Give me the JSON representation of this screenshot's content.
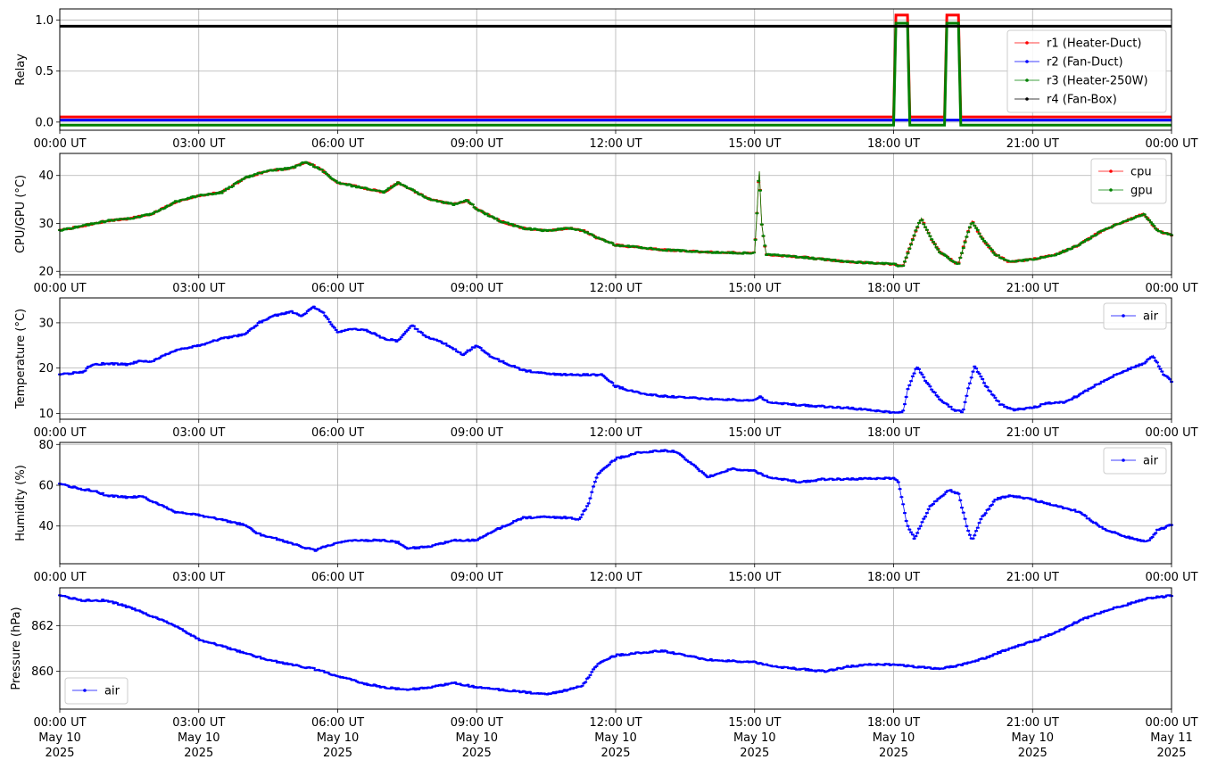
{
  "chart_data": [
    {
      "type": "line",
      "ylabel": "Relay",
      "xlim": [
        "00:00 UT",
        "00:00 UT"
      ],
      "ylim": [
        -0.08,
        1.11
      ],
      "yticks": [
        "0.0",
        "0.5",
        "1.0"
      ],
      "xticks": [
        "00:00 UT",
        "03:00 UT",
        "06:00 UT",
        "09:00 UT",
        "12:00 UT",
        "15:00 UT",
        "18:00 UT",
        "21:00 UT",
        "00:00 UT"
      ],
      "grid": true,
      "legend": "top-right",
      "series": [
        {
          "name": "r1 (Heater-Duct)",
          "color": "#ff0000",
          "offset": 0.05,
          "points": [
            [
              0,
              0
            ],
            [
              18.0,
              0
            ],
            [
              18.05,
              1
            ],
            [
              18.3,
              1
            ],
            [
              18.35,
              0
            ],
            [
              19.1,
              0
            ],
            [
              19.15,
              1
            ],
            [
              19.4,
              1
            ],
            [
              19.45,
              0
            ],
            [
              24,
              0
            ]
          ]
        },
        {
          "name": "r2 (Fan-Duct)",
          "color": "#0000ff",
          "offset": 0.02,
          "points": [
            [
              0,
              0
            ],
            [
              24,
              0
            ]
          ]
        },
        {
          "name": "r3 (Heater-250W)",
          "color": "#008000",
          "offset": -0.03,
          "points": [
            [
              0,
              0
            ],
            [
              18.0,
              0
            ],
            [
              18.05,
              1
            ],
            [
              18.3,
              1
            ],
            [
              18.35,
              0
            ],
            [
              19.1,
              0
            ],
            [
              19.15,
              1
            ],
            [
              19.4,
              1
            ],
            [
              19.45,
              0
            ],
            [
              24,
              0
            ]
          ]
        },
        {
          "name": "r4 (Fan-Box)",
          "color": "#000000",
          "offset": -0.06,
          "points": [
            [
              0,
              1
            ],
            [
              24,
              1
            ]
          ]
        }
      ]
    },
    {
      "type": "line",
      "ylabel": "CPU/GPU (°C)",
      "ylim": [
        19.3,
        44.6
      ],
      "yticks": [
        "20",
        "30",
        "40"
      ],
      "xticks": [
        "00:00 UT",
        "03:00 UT",
        "06:00 UT",
        "09:00 UT",
        "12:00 UT",
        "15:00 UT",
        "18:00 UT",
        "21:00 UT",
        "00:00 UT"
      ],
      "grid": true,
      "legend": "top-right",
      "series": [
        {
          "name": "cpu",
          "color": "#ff0000"
        },
        {
          "name": "gpu",
          "color": "#008000"
        }
      ],
      "points": [
        [
          0,
          28.5
        ],
        [
          0.5,
          29.5
        ],
        [
          1,
          30.5
        ],
        [
          1.5,
          31
        ],
        [
          2,
          32
        ],
        [
          2.5,
          34.5
        ],
        [
          3,
          35.8
        ],
        [
          3.5,
          36.5
        ],
        [
          4,
          39.5
        ],
        [
          4.5,
          41
        ],
        [
          5,
          41.5
        ],
        [
          5.3,
          42.8
        ],
        [
          5.6,
          41.5
        ],
        [
          6,
          38.5
        ],
        [
          6.5,
          37.5
        ],
        [
          7,
          36.5
        ],
        [
          7.3,
          38.5
        ],
        [
          7.6,
          37
        ],
        [
          8,
          35
        ],
        [
          8.5,
          34
        ],
        [
          8.8,
          34.8
        ],
        [
          9,
          33
        ],
        [
          9.5,
          30.5
        ],
        [
          10,
          29
        ],
        [
          10.5,
          28.5
        ],
        [
          11,
          29
        ],
        [
          11.3,
          28.5
        ],
        [
          11.6,
          27
        ],
        [
          12,
          25.5
        ],
        [
          12.5,
          25
        ],
        [
          13,
          24.5
        ],
        [
          14,
          24
        ],
        [
          15,
          23.8
        ],
        [
          15.05,
          32
        ],
        [
          15.1,
          41.5
        ],
        [
          15.15,
          30
        ],
        [
          15.25,
          23.5
        ],
        [
          16,
          23
        ],
        [
          16.5,
          22.5
        ],
        [
          17,
          22
        ],
        [
          18,
          21.5
        ],
        [
          18.2,
          21
        ],
        [
          18.5,
          29
        ],
        [
          18.6,
          31
        ],
        [
          18.8,
          27
        ],
        [
          19,
          24
        ],
        [
          19.3,
          22
        ],
        [
          19.4,
          21.5
        ],
        [
          19.6,
          28
        ],
        [
          19.7,
          30.5
        ],
        [
          19.9,
          27
        ],
        [
          20.2,
          23.5
        ],
        [
          20.5,
          22
        ],
        [
          21,
          22.5
        ],
        [
          21.5,
          23.5
        ],
        [
          22,
          25.5
        ],
        [
          22.5,
          28.5
        ],
        [
          23,
          30.5
        ],
        [
          23.4,
          32
        ],
        [
          23.7,
          28.5
        ],
        [
          24,
          27.5
        ]
      ]
    },
    {
      "type": "line",
      "ylabel": "Temperature (°C)",
      "ylim": [
        8.7,
        35.5
      ],
      "yticks": [
        "10",
        "20",
        "30"
      ],
      "xticks": [
        "00:00 UT",
        "03:00 UT",
        "06:00 UT",
        "09:00 UT",
        "12:00 UT",
        "15:00 UT",
        "18:00 UT",
        "21:00 UT",
        "00:00 UT"
      ],
      "grid": true,
      "legend": "top-right",
      "series": [
        {
          "name": "air",
          "color": "#0000ff"
        }
      ],
      "points": [
        [
          0,
          18.5
        ],
        [
          0.5,
          19.2
        ],
        [
          0.7,
          20.8
        ],
        [
          1,
          21
        ],
        [
          1.5,
          20.8
        ],
        [
          1.7,
          21.5
        ],
        [
          2,
          21.5
        ],
        [
          2.5,
          24
        ],
        [
          3,
          25
        ],
        [
          3.5,
          26.5
        ],
        [
          4,
          27.5
        ],
        [
          4.3,
          30
        ],
        [
          4.6,
          31.5
        ],
        [
          5,
          32.5
        ],
        [
          5.2,
          31.5
        ],
        [
          5.5,
          33.5
        ],
        [
          5.7,
          32
        ],
        [
          6,
          28
        ],
        [
          6.3,
          28.5
        ],
        [
          6.6,
          28.5
        ],
        [
          7,
          26.5
        ],
        [
          7.3,
          26
        ],
        [
          7.6,
          29.5
        ],
        [
          7.9,
          27
        ],
        [
          8.3,
          25.5
        ],
        [
          8.7,
          23
        ],
        [
          9,
          25
        ],
        [
          9.3,
          22.5
        ],
        [
          10,
          19.5
        ],
        [
          10.5,
          18.8
        ],
        [
          11,
          18.5
        ],
        [
          11.5,
          18.5
        ],
        [
          11.7,
          18.5
        ],
        [
          12,
          16
        ],
        [
          12.5,
          14.5
        ],
        [
          13,
          13.8
        ],
        [
          14,
          13.2
        ],
        [
          15,
          12.8
        ],
        [
          15.1,
          13.8
        ],
        [
          15.3,
          12.5
        ],
        [
          16,
          11.8
        ],
        [
          17,
          11.2
        ],
        [
          18,
          10.2
        ],
        [
          18.2,
          10.2
        ],
        [
          18.3,
          15
        ],
        [
          18.5,
          20.5
        ],
        [
          18.7,
          17
        ],
        [
          19,
          13
        ],
        [
          19.3,
          10.8
        ],
        [
          19.5,
          10.3
        ],
        [
          19.6,
          15
        ],
        [
          19.75,
          20.5
        ],
        [
          20,
          16
        ],
        [
          20.3,
          12
        ],
        [
          20.6,
          10.8
        ],
        [
          21,
          11.2
        ],
        [
          21.3,
          12.2
        ],
        [
          21.7,
          12.5
        ],
        [
          22,
          14
        ],
        [
          22.5,
          17
        ],
        [
          23,
          19.5
        ],
        [
          23.4,
          21
        ],
        [
          23.6,
          22.8
        ],
        [
          23.8,
          19
        ],
        [
          24,
          17
        ]
      ]
    },
    {
      "type": "line",
      "ylabel": "Humidity (%)",
      "ylim": [
        21.5,
        81
      ],
      "yticks": [
        "40",
        "60",
        "80"
      ],
      "xticks": [
        "00:00 UT",
        "03:00 UT",
        "06:00 UT",
        "09:00 UT",
        "12:00 UT",
        "15:00 UT",
        "18:00 UT",
        "21:00 UT",
        "00:00 UT"
      ],
      "grid": true,
      "legend": "top-right",
      "series": [
        {
          "name": "air",
          "color": "#0000ff"
        }
      ],
      "points": [
        [
          0,
          60.5
        ],
        [
          0.5,
          58
        ],
        [
          0.8,
          57
        ],
        [
          1,
          55
        ],
        [
          1.5,
          54
        ],
        [
          1.8,
          54.5
        ],
        [
          2,
          52
        ],
        [
          2.5,
          47
        ],
        [
          3,
          45.5
        ],
        [
          3.5,
          43
        ],
        [
          4,
          40.5
        ],
        [
          4.3,
          36
        ],
        [
          4.8,
          33
        ],
        [
          5,
          31.5
        ],
        [
          5.5,
          28
        ],
        [
          6,
          32
        ],
        [
          6.5,
          33
        ],
        [
          7,
          33
        ],
        [
          7.3,
          32
        ],
        [
          7.5,
          29
        ],
        [
          8,
          30
        ],
        [
          8.5,
          33
        ],
        [
          9,
          33
        ],
        [
          9.5,
          39
        ],
        [
          10,
          44
        ],
        [
          10.5,
          44.5
        ],
        [
          11,
          44
        ],
        [
          11.2,
          43
        ],
        [
          11.4,
          50
        ],
        [
          11.6,
          65
        ],
        [
          12,
          73
        ],
        [
          12.5,
          76
        ],
        [
          13,
          77
        ],
        [
          13.3,
          76.5
        ],
        [
          13.5,
          73
        ],
        [
          14,
          64
        ],
        [
          14.5,
          68
        ],
        [
          15,
          67
        ],
        [
          15.3,
          64
        ],
        [
          15.6,
          63
        ],
        [
          16,
          61.5
        ],
        [
          16.5,
          63
        ],
        [
          17,
          63
        ],
        [
          18,
          63.5
        ],
        [
          18.1,
          62
        ],
        [
          18.3,
          40
        ],
        [
          18.45,
          34
        ],
        [
          18.8,
          50
        ],
        [
          19.2,
          57.5
        ],
        [
          19.4,
          56
        ],
        [
          19.6,
          38
        ],
        [
          19.7,
          33
        ],
        [
          19.9,
          44
        ],
        [
          20.2,
          53
        ],
        [
          20.5,
          55
        ],
        [
          21,
          53
        ],
        [
          21.3,
          51
        ],
        [
          21.5,
          50
        ],
        [
          22,
          47
        ],
        [
          22.3,
          42
        ],
        [
          22.6,
          38
        ],
        [
          23,
          35
        ],
        [
          23.3,
          33
        ],
        [
          23.5,
          32.5
        ],
        [
          23.7,
          38
        ],
        [
          24,
          40.5
        ]
      ]
    },
    {
      "type": "line",
      "ylabel": "Pressure (hPa)",
      "xlabel": "",
      "ylim": [
        858.35,
        863.65
      ],
      "yticks": [
        "860",
        "862"
      ],
      "xticks": [
        "00:00 UT",
        "03:00 UT",
        "06:00 UT",
        "09:00 UT",
        "12:00 UT",
        "15:00 UT",
        "18:00 UT",
        "21:00 UT",
        "00:00 UT"
      ],
      "xticks_line2": [
        "May 10",
        "May 10",
        "May 10",
        "May 10",
        "May 10",
        "May 10",
        "May 10",
        "May 10",
        "May 11"
      ],
      "xticks_line3": [
        "2025",
        "2025",
        "2025",
        "2025",
        "2025",
        "2025",
        "2025",
        "2025",
        "2025"
      ],
      "grid": true,
      "legend": "lower-left",
      "series": [
        {
          "name": "air",
          "color": "#0000ff"
        }
      ],
      "points": [
        [
          0,
          863.3
        ],
        [
          0.5,
          863.1
        ],
        [
          1,
          863.1
        ],
        [
          1.5,
          862.8
        ],
        [
          2,
          862.4
        ],
        [
          2.5,
          862
        ],
        [
          3,
          861.4
        ],
        [
          3.5,
          861.1
        ],
        [
          4,
          860.8
        ],
        [
          4.5,
          860.5
        ],
        [
          5,
          860.3
        ],
        [
          5.5,
          860.1
        ],
        [
          6,
          859.8
        ],
        [
          6.5,
          859.5
        ],
        [
          7,
          859.3
        ],
        [
          7.5,
          859.2
        ],
        [
          8,
          859.3
        ],
        [
          8.5,
          859.5
        ],
        [
          9,
          859.3
        ],
        [
          9.5,
          859.2
        ],
        [
          10,
          859.1
        ],
        [
          10.5,
          859
        ],
        [
          11,
          859.2
        ],
        [
          11.3,
          859.4
        ],
        [
          11.6,
          860.3
        ],
        [
          12,
          860.7
        ],
        [
          12.5,
          860.8
        ],
        [
          13,
          860.9
        ],
        [
          13.5,
          860.7
        ],
        [
          14,
          860.5
        ],
        [
          15,
          860.4
        ],
        [
          15.5,
          860.2
        ],
        [
          16,
          860.1
        ],
        [
          16.5,
          860
        ],
        [
          17,
          860.2
        ],
        [
          17.5,
          860.3
        ],
        [
          18,
          860.3
        ],
        [
          18.5,
          860.2
        ],
        [
          19,
          860.1
        ],
        [
          19.5,
          860.3
        ],
        [
          20,
          860.6
        ],
        [
          20.5,
          861
        ],
        [
          21,
          861.3
        ],
        [
          21.5,
          861.7
        ],
        [
          22,
          862.2
        ],
        [
          22.5,
          862.6
        ],
        [
          23,
          862.9
        ],
        [
          23.5,
          863.2
        ],
        [
          24,
          863.3
        ]
      ]
    }
  ]
}
